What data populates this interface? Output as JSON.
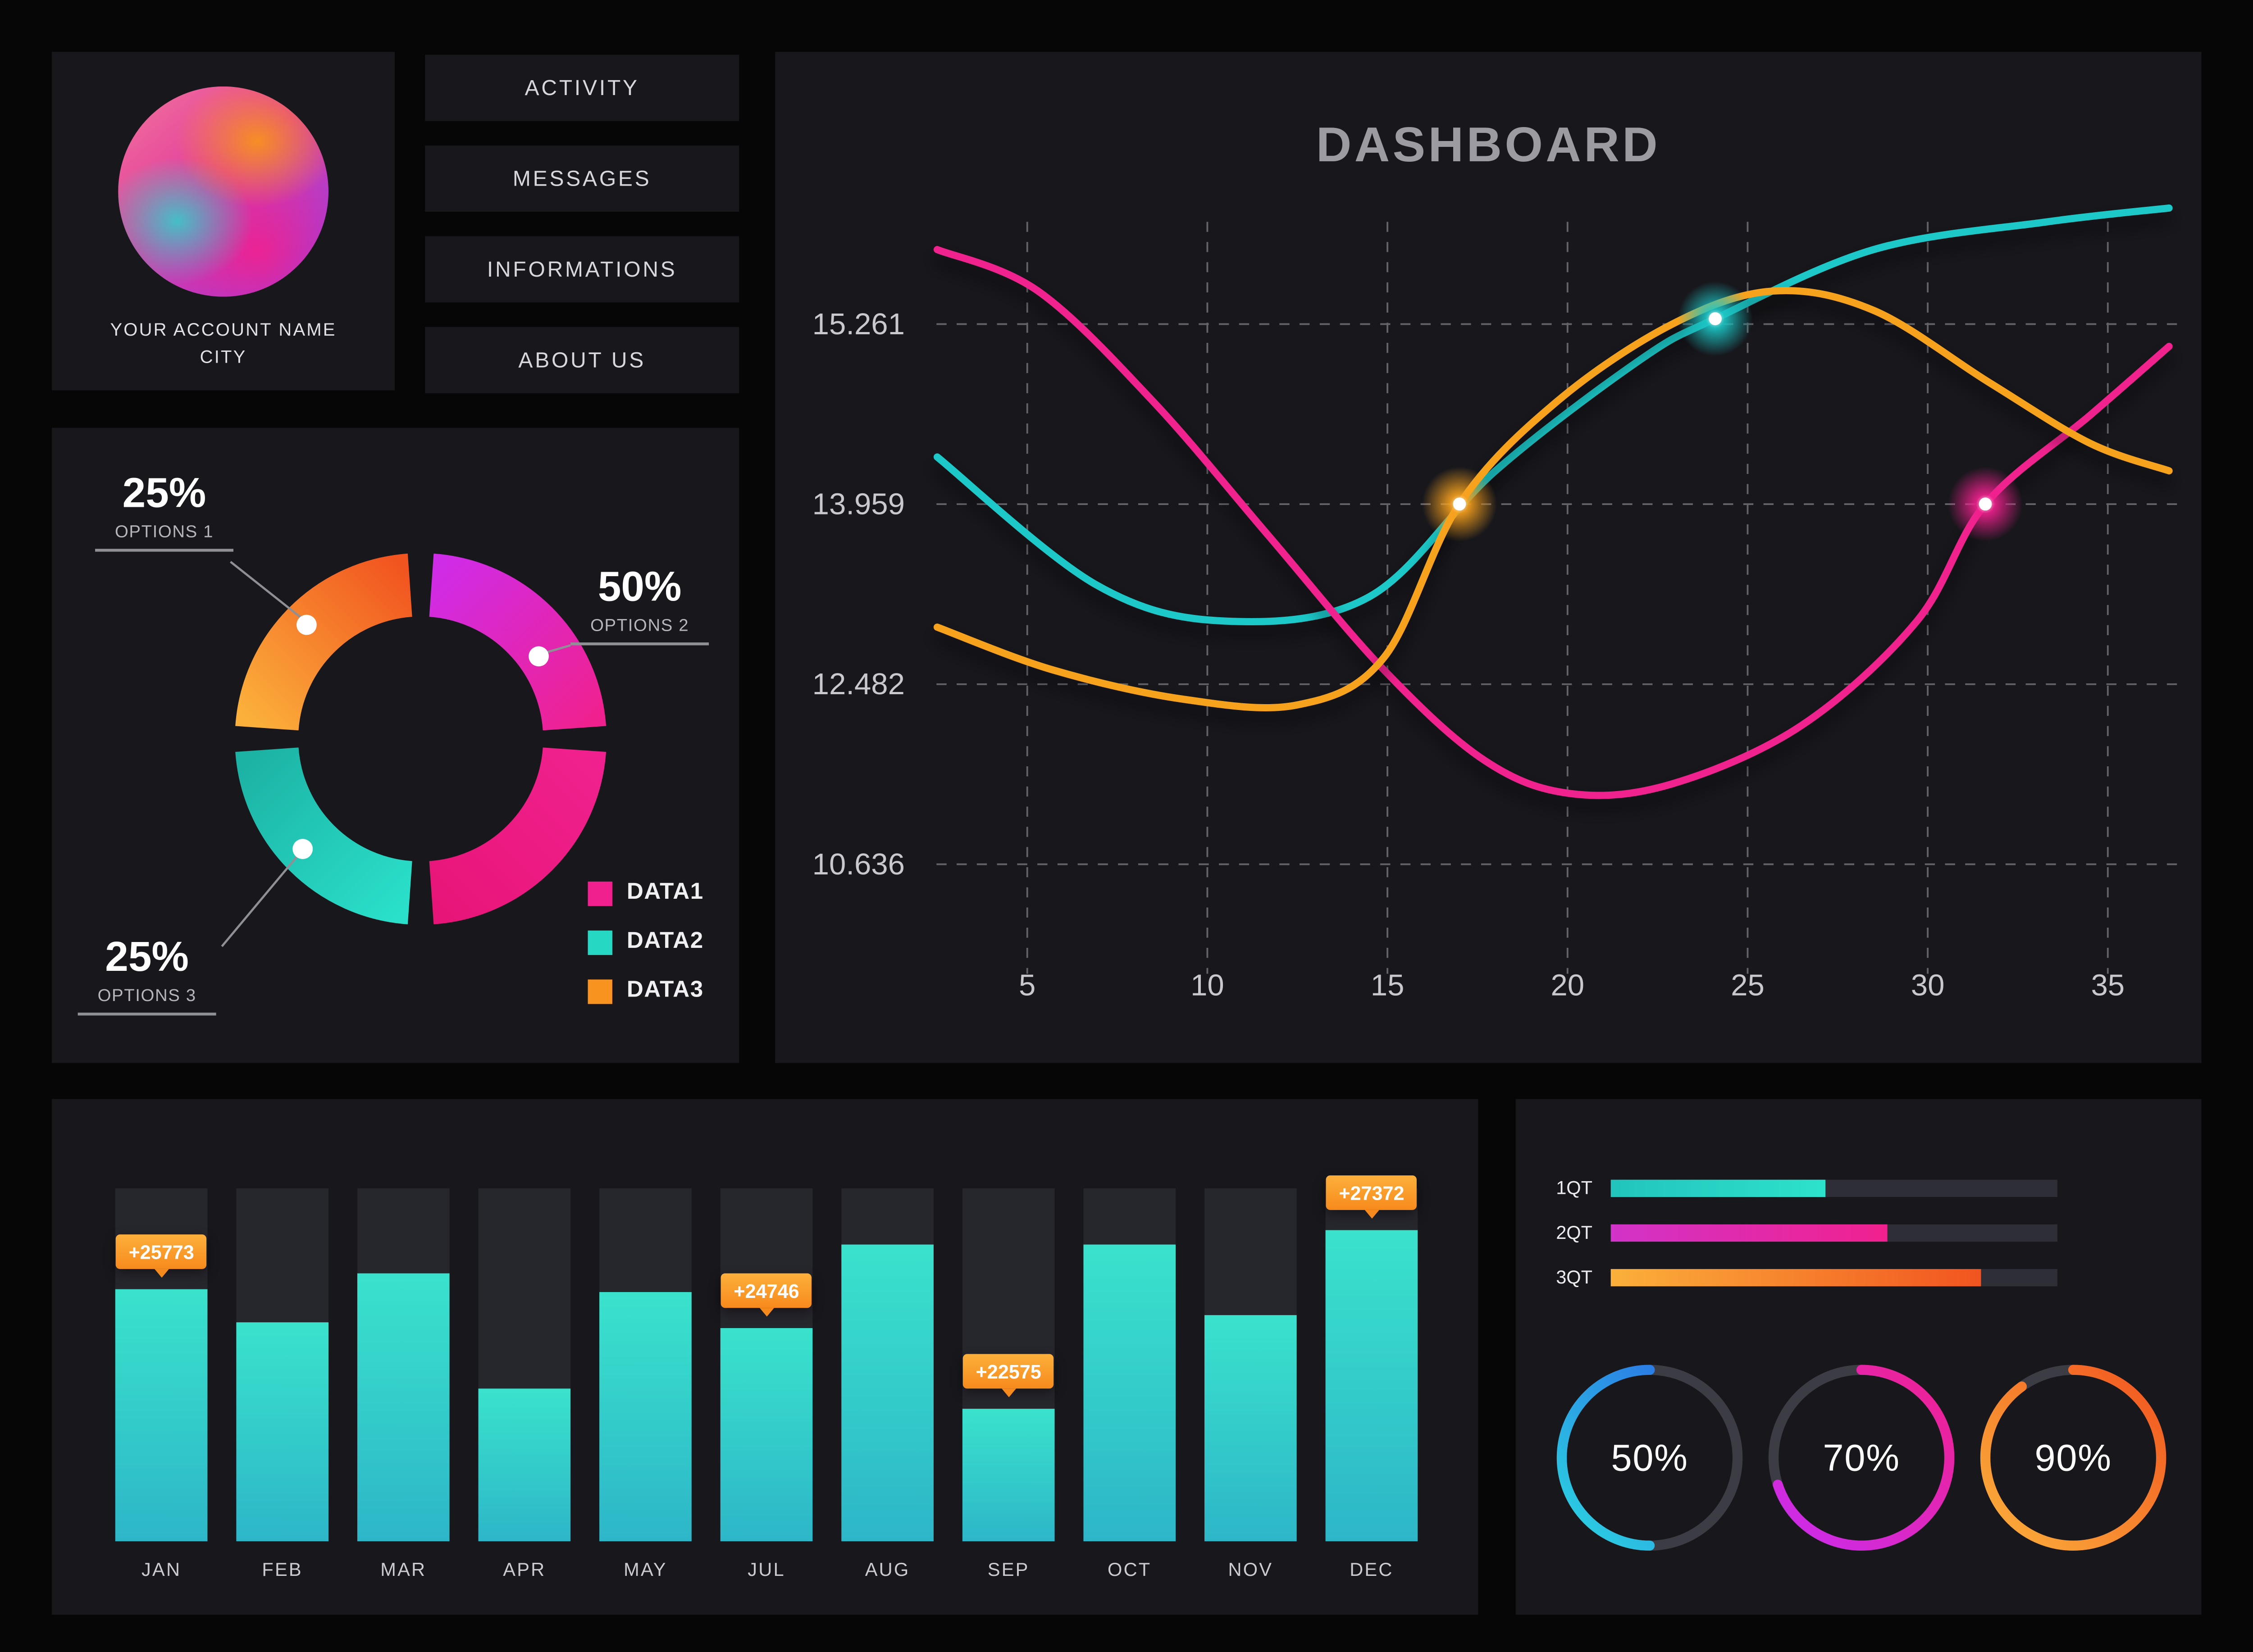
{
  "background": "#060607",
  "panel_color": "#17171c",
  "account": {
    "name": "YOUR ACCOUNT NAME",
    "city": "CITY"
  },
  "menu": {
    "items": [
      {
        "label": "ACTIVITY"
      },
      {
        "label": "MESSAGES"
      },
      {
        "label": "INFORMATIONS"
      },
      {
        "label": "ABOUT US"
      }
    ]
  },
  "chart_data": [
    {
      "id": "donut",
      "type": "pie",
      "values": [
        25,
        50,
        25
      ],
      "labels": [
        "OPTIONS 1",
        "OPTIONS 2",
        "OPTIONS 3"
      ],
      "callouts": [
        {
          "pct": "25%",
          "label": "OPTIONS 1"
        },
        {
          "pct": "50%",
          "label": "OPTIONS 2"
        },
        {
          "pct": "25%",
          "label": "OPTIONS 3"
        }
      ],
      "legend": [
        {
          "label": "DATA1",
          "color": "#f0218e"
        },
        {
          "label": "DATA2",
          "color": "#26d8c4"
        },
        {
          "label": "DATA3",
          "color": "#f7931e"
        }
      ],
      "segment_colors": {
        "pink_start": "#cf2ce8",
        "pink_mid": "#f0218e",
        "pink_end": "#e81578",
        "teal_start": "#2ae0ca",
        "teal_end": "#1cb2a4",
        "orange_start": "#fbb03b",
        "orange_end": "#f1541f"
      }
    },
    {
      "id": "line",
      "type": "line",
      "title": "DASHBOARD",
      "grid": true,
      "legend_position": "none",
      "y_ticks": [
        "15.261",
        "13.959",
        "12.482",
        "10.636"
      ],
      "y_tick_values": [
        15.261,
        13.959,
        12.482,
        10.636
      ],
      "x_ticks": [
        5,
        10,
        15,
        20,
        25,
        30,
        35
      ],
      "xlim": [
        2.5,
        36.9
      ],
      "series": [
        {
          "name": "series-teal",
          "color": "#1dc8c8",
          "points": [
            [
              2.5,
              14.3
            ],
            [
              6.9,
              13.3
            ],
            [
              10.5,
              13.0
            ],
            [
              14.5,
              13.2
            ],
            [
              18,
              14.2
            ],
            [
              22,
              15.0
            ],
            [
              24.1,
              15.3
            ],
            [
              28.5,
              15.8
            ],
            [
              33.3,
              16.0
            ],
            [
              36.7,
              16.1
            ]
          ],
          "marker": [
            24.1,
            15.3
          ]
        },
        {
          "name": "series-pink",
          "color": "#f0218e",
          "points": [
            [
              2.5,
              15.8
            ],
            [
              5.3,
              15.5
            ],
            [
              8.5,
              14.7
            ],
            [
              11.7,
              13.7
            ],
            [
              14.9,
              12.6
            ],
            [
              17.7,
              11.7
            ],
            [
              20.1,
              11.36
            ],
            [
              22.9,
              11.46
            ],
            [
              26.5,
              12.06
            ],
            [
              29.7,
              13.0
            ],
            [
              31.6,
              13.96
            ],
            [
              34.5,
              14.6
            ],
            [
              36.7,
              15.1
            ]
          ],
          "marker": [
            31.6,
            13.96
          ]
        },
        {
          "name": "series-orange",
          "color": "#f7a21e",
          "points": [
            [
              2.5,
              12.95
            ],
            [
              5.7,
              12.6
            ],
            [
              9.3,
              12.33
            ],
            [
              12.5,
              12.27
            ],
            [
              14.9,
              12.7
            ],
            [
              17,
              13.96
            ],
            [
              19.7,
              14.7
            ],
            [
              22.9,
              15.26
            ],
            [
              25.7,
              15.5
            ],
            [
              28.5,
              15.36
            ],
            [
              31.7,
              14.84
            ],
            [
              34.5,
              14.4
            ],
            [
              36.7,
              14.2
            ]
          ],
          "marker": [
            17,
            13.96
          ]
        }
      ]
    },
    {
      "id": "monthly-bars",
      "type": "bar",
      "categories": [
        "JAN",
        "FEB",
        "MAR",
        "APR",
        "MAY",
        "JUL",
        "AUG",
        "SEP",
        "OCT",
        "NOV",
        "DEC"
      ],
      "values": [
        25773,
        24900,
        26200,
        23100,
        25700,
        24746,
        27000,
        22575,
        27000,
        25100,
        27372
      ],
      "tags": [
        {
          "index": 0,
          "label": "+25773"
        },
        {
          "index": 5,
          "label": "+24746"
        },
        {
          "index": 7,
          "label": "+22575"
        },
        {
          "index": 10,
          "label": "+27372"
        }
      ],
      "ylim": [
        19000,
        28500
      ],
      "bar_color_top": "#3ae2cc",
      "bar_color_bottom": "#2db6c8",
      "track_color": "#26262d"
    },
    {
      "id": "quarter-progress",
      "type": "bar",
      "categories": [
        "1QT",
        "2QT",
        "3QT"
      ],
      "values": [
        48,
        62,
        83
      ],
      "unit": "percent",
      "colors": [
        [
          "#22c4bc",
          "#2de2cc"
        ],
        [
          "#d233c8",
          "#f0218e"
        ],
        [
          "#fbb03b",
          "#f1541f"
        ]
      ]
    },
    {
      "id": "gauges",
      "type": "pie",
      "labels": [
        "50%",
        "70%",
        "90%"
      ],
      "values": [
        50,
        70,
        90
      ],
      "colors": [
        [
          "#2b62e8",
          "#2bd8e0"
        ],
        [
          "#c92df0",
          "#f0218e"
        ],
        [
          "#fbb03b",
          "#f1541f"
        ]
      ]
    }
  ]
}
